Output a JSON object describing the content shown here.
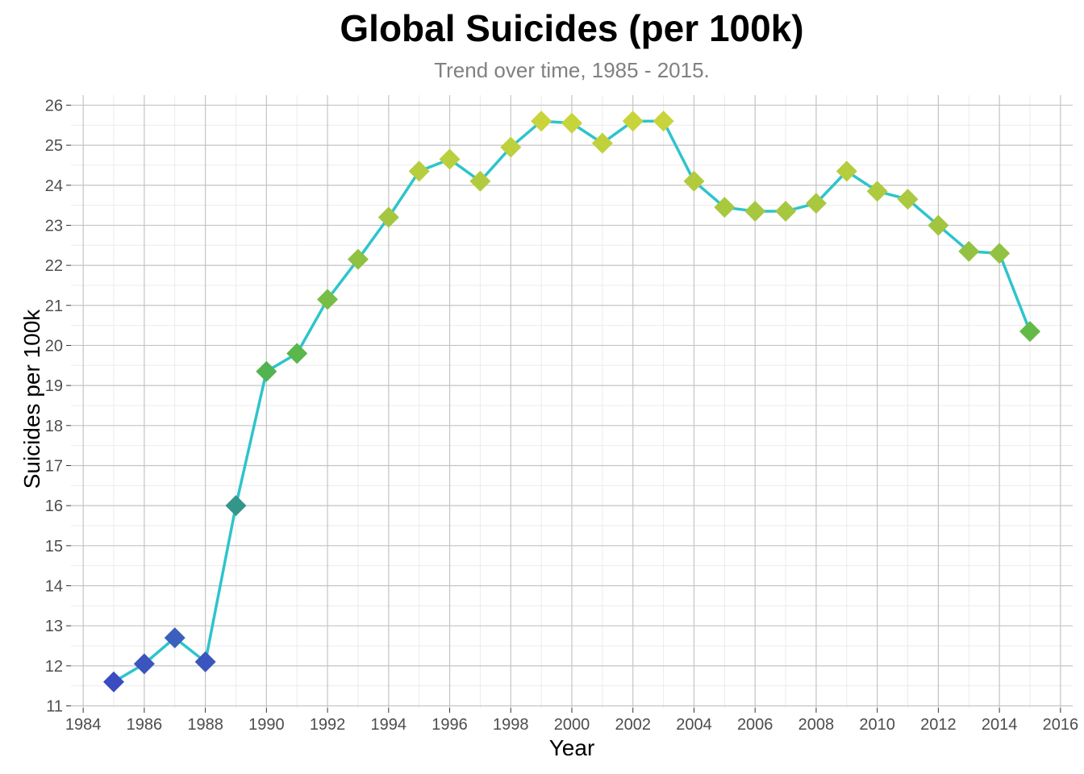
{
  "chart_data": {
    "type": "line",
    "title": "Global Suicides (per 100k)",
    "subtitle": "Trend over time, 1985 - 2015.",
    "xlabel": "Year",
    "ylabel": "Suicides per 100k",
    "xlim": [
      1983.6,
      2016.4
    ],
    "ylim": [
      10.95,
      26.25
    ],
    "x_ticks": [
      1984,
      1986,
      1988,
      1990,
      1992,
      1994,
      1996,
      1998,
      2000,
      2002,
      2004,
      2006,
      2008,
      2010,
      2012,
      2014,
      2016
    ],
    "y_ticks": [
      11,
      12,
      13,
      14,
      15,
      16,
      17,
      18,
      19,
      20,
      21,
      22,
      23,
      24,
      25,
      26
    ],
    "grid": true,
    "line_color": "#2EC4CC",
    "marker": "diamond",
    "marker_color_scale": [
      "#3B4CC0",
      "#3A7FB5",
      "#2FA86C",
      "#5CB848",
      "#9EC442",
      "#C8D43A"
    ],
    "series": [
      {
        "x": [
          1985,
          1986,
          1987,
          1988,
          1989,
          1990,
          1991,
          1992,
          1993,
          1994,
          1995,
          1996,
          1997,
          1998,
          1999,
          2000,
          2001,
          2002,
          2003,
          2004,
          2005,
          2006,
          2007,
          2008,
          2009,
          2010,
          2011,
          2012,
          2013,
          2014,
          2015
        ],
        "values": [
          11.6,
          12.05,
          12.7,
          12.1,
          16.0,
          19.35,
          19.8,
          21.15,
          22.15,
          23.2,
          24.35,
          24.65,
          24.1,
          24.95,
          25.6,
          25.55,
          25.05,
          25.6,
          25.6,
          24.1,
          23.45,
          23.35,
          23.35,
          23.55,
          24.35,
          23.85,
          23.65,
          23.0,
          22.35,
          22.3,
          20.35
        ]
      }
    ]
  }
}
